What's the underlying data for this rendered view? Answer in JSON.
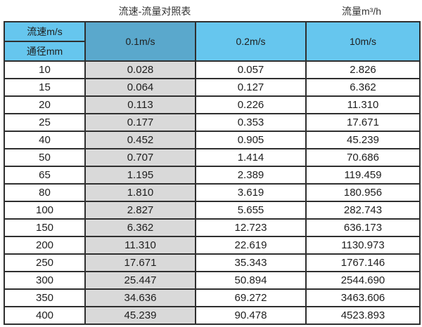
{
  "titles": {
    "left": "流速-流量对照表",
    "right": "流量m³/h"
  },
  "table": {
    "corner_top": "流速m/s",
    "corner_bottom": "通径mm",
    "velocity_headers": [
      "0.1m/s",
      "0.2m/s",
      "10m/s"
    ],
    "rows": [
      [
        "10",
        "0.028",
        "0.057",
        "2.826"
      ],
      [
        "15",
        "0.064",
        "0.127",
        "6.362"
      ],
      [
        "20",
        "0.113",
        "0.226",
        "11.310"
      ],
      [
        "25",
        "0.177",
        "0.353",
        "17.671"
      ],
      [
        "40",
        "0.452",
        "0.905",
        "45.239"
      ],
      [
        "50",
        "0.707",
        "1.414",
        "70.686"
      ],
      [
        "65",
        "1.195",
        "2.389",
        "119.459"
      ],
      [
        "80",
        "1.810",
        "3.619",
        "180.956"
      ],
      [
        "100",
        "2.827",
        "5.655",
        "282.743"
      ],
      [
        "150",
        "6.362",
        "12.723",
        "636.173"
      ],
      [
        "200",
        "11.310",
        "22.619",
        "1130.973"
      ],
      [
        "250",
        "17.671",
        "35.343",
        "1767.146"
      ],
      [
        "300",
        "25.447",
        "50.894",
        "2544.690"
      ],
      [
        "350",
        "34.636",
        "69.272",
        "3463.606"
      ],
      [
        "400",
        "45.239",
        "90.478",
        "4523.893"
      ]
    ]
  },
  "colors": {
    "header_blue": "#66c6ee",
    "header_dark_blue": "#5aa8cc",
    "gray_column": "#d9d9d9",
    "border": "#2f2f2f",
    "background": "#ffffff"
  },
  "chart_data": {
    "type": "table",
    "title": "流速-流量对照表",
    "unit_label": "流量m³/h",
    "column_header": "流速m/s",
    "row_header": "通径mm",
    "columns": [
      "0.1m/s",
      "0.2m/s",
      "10m/s"
    ],
    "diameters_mm": [
      10,
      15,
      20,
      25,
      40,
      50,
      65,
      80,
      100,
      150,
      200,
      250,
      300,
      350,
      400
    ],
    "series": [
      {
        "name": "0.1m/s",
        "values": [
          0.028,
          0.064,
          0.113,
          0.177,
          0.452,
          0.707,
          1.195,
          1.81,
          2.827,
          6.362,
          11.31,
          17.671,
          25.447,
          34.636,
          45.239
        ]
      },
      {
        "name": "0.2m/s",
        "values": [
          0.057,
          0.127,
          0.226,
          0.353,
          0.905,
          1.414,
          2.389,
          3.619,
          5.655,
          12.723,
          22.619,
          35.343,
          50.894,
          69.272,
          90.478
        ]
      },
      {
        "name": "10m/s",
        "values": [
          2.826,
          6.362,
          11.31,
          17.671,
          45.239,
          70.686,
          119.459,
          180.956,
          282.743,
          636.173,
          1130.973,
          1767.146,
          2544.69,
          3463.606,
          4523.893
        ]
      }
    ]
  }
}
